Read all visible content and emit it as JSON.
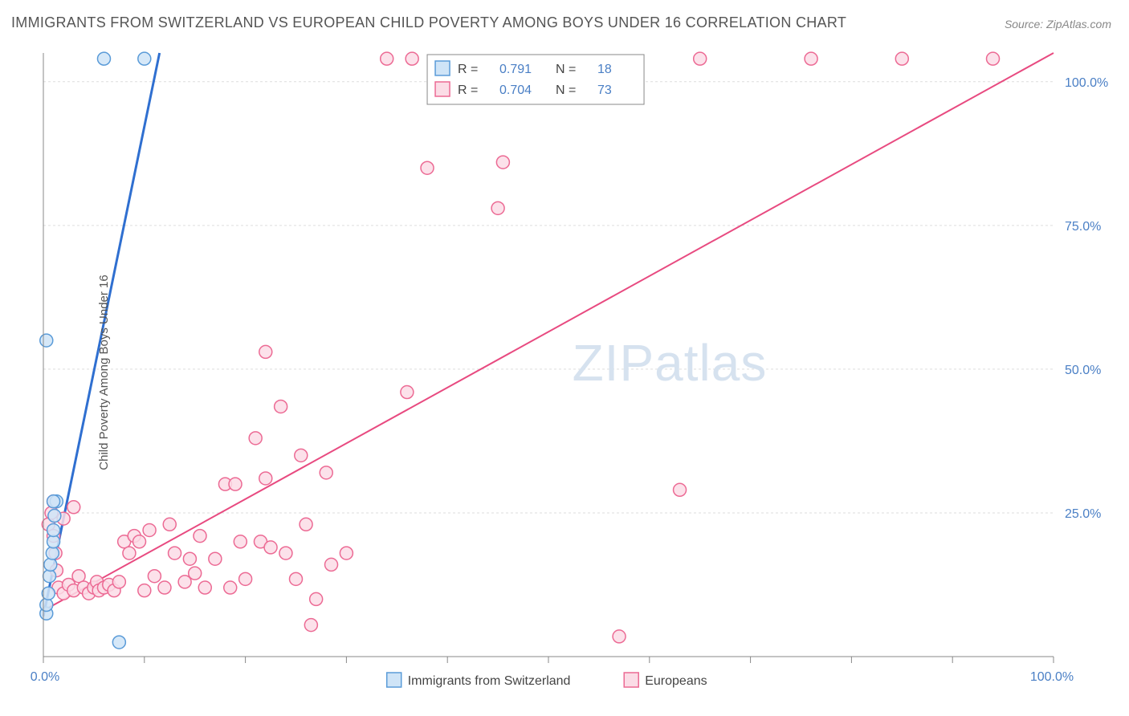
{
  "title": "IMMIGRANTS FROM SWITZERLAND VS EUROPEAN CHILD POVERTY AMONG BOYS UNDER 16 CORRELATION CHART",
  "source": "Source: ZipAtlas.com",
  "ylabel": "Child Poverty Among Boys Under 16",
  "watermark": "ZIPatlas",
  "chart": {
    "type": "scatter",
    "xlim": [
      0,
      100
    ],
    "ylim": [
      0,
      105
    ],
    "yticks": [
      25,
      50,
      75,
      100
    ],
    "ytick_labels": [
      "25.0%",
      "50.0%",
      "75.0%",
      "100.0%"
    ],
    "xticks_minor": [
      0,
      10,
      20,
      30,
      40,
      50,
      60,
      70,
      80,
      90,
      100
    ],
    "x_end_labels": [
      "0.0%",
      "100.0%"
    ],
    "background_color": "#ffffff",
    "grid_color": "#dddddd",
    "axis_color": "#888888",
    "marker_radius": 8,
    "marker_stroke_width": 1.5,
    "series": [
      {
        "name": "Immigrants from Switzerland",
        "fill": "#cfe4f7",
        "stroke": "#5a9bd8",
        "line_color": "#2f6fd0",
        "line_width": 3,
        "R": "0.791",
        "N": "18",
        "trend": {
          "x1": 0,
          "y1": 7,
          "x2": 11.5,
          "y2": 105
        },
        "points": [
          [
            0.3,
            7.5
          ],
          [
            0.3,
            9
          ],
          [
            0.5,
            11
          ],
          [
            0.6,
            14
          ],
          [
            0.7,
            16
          ],
          [
            0.9,
            18
          ],
          [
            1.0,
            20
          ],
          [
            1.0,
            22
          ],
          [
            1.1,
            24.5
          ],
          [
            1.3,
            27
          ],
          [
            1.0,
            27
          ],
          [
            0.3,
            55
          ],
          [
            7.5,
            2.5
          ],
          [
            6.0,
            104
          ],
          [
            10.0,
            104
          ]
        ]
      },
      {
        "name": "Europeans",
        "fill": "#fbdce6",
        "stroke": "#ec6a94",
        "line_color": "#e84a80",
        "line_width": 2,
        "R": "0.704",
        "N": "73",
        "trend": {
          "x1": 0,
          "y1": 8,
          "x2": 100,
          "y2": 105
        },
        "points": [
          [
            0.5,
            23
          ],
          [
            0.8,
            25
          ],
          [
            1.0,
            21
          ],
          [
            1.0,
            27
          ],
          [
            1.2,
            18
          ],
          [
            1.3,
            15
          ],
          [
            1.5,
            12
          ],
          [
            2.0,
            11
          ],
          [
            2.0,
            24
          ],
          [
            2.5,
            12.5
          ],
          [
            3.0,
            11.5
          ],
          [
            3.0,
            26
          ],
          [
            3.5,
            14
          ],
          [
            4.0,
            12
          ],
          [
            4.5,
            11
          ],
          [
            5.0,
            12
          ],
          [
            5.3,
            13
          ],
          [
            5.5,
            11.5
          ],
          [
            6.0,
            12
          ],
          [
            6.5,
            12.5
          ],
          [
            7.0,
            11.5
          ],
          [
            7.5,
            13
          ],
          [
            8.0,
            20
          ],
          [
            8.5,
            18
          ],
          [
            9.0,
            21
          ],
          [
            9.5,
            20
          ],
          [
            10.0,
            11.5
          ],
          [
            10.5,
            22
          ],
          [
            11.0,
            14
          ],
          [
            12.0,
            12
          ],
          [
            12.5,
            23
          ],
          [
            13.0,
            18
          ],
          [
            14.0,
            13
          ],
          [
            14.5,
            17
          ],
          [
            15.0,
            14.5
          ],
          [
            15.5,
            21
          ],
          [
            16.0,
            12
          ],
          [
            17.0,
            17
          ],
          [
            18.0,
            30
          ],
          [
            18.5,
            12
          ],
          [
            19.0,
            30
          ],
          [
            19.5,
            20
          ],
          [
            20.0,
            13.5
          ],
          [
            21.0,
            38
          ],
          [
            21.5,
            20
          ],
          [
            22.0,
            31
          ],
          [
            22.5,
            19
          ],
          [
            23.5,
            43.5
          ],
          [
            24.0,
            18
          ],
          [
            25.0,
            13.5
          ],
          [
            25.5,
            35
          ],
          [
            26.0,
            23
          ],
          [
            26.5,
            5.5
          ],
          [
            27.0,
            10
          ],
          [
            22.0,
            53
          ],
          [
            28.0,
            32
          ],
          [
            28.5,
            16
          ],
          [
            30.0,
            18
          ],
          [
            34.0,
            104
          ],
          [
            36.0,
            46
          ],
          [
            36.5,
            104
          ],
          [
            38.0,
            85
          ],
          [
            45.0,
            78
          ],
          [
            45.5,
            86
          ],
          [
            57.0,
            3.5
          ],
          [
            65.0,
            104
          ],
          [
            63.0,
            29
          ],
          [
            76.0,
            104
          ],
          [
            85.0,
            104
          ],
          [
            94.0,
            104
          ]
        ]
      }
    ],
    "legend_top": {
      "labels_R": "R =",
      "labels_N": "N ="
    },
    "legend_bottom": [
      {
        "label": "Immigrants from Switzerland",
        "fill": "#cfe4f7",
        "stroke": "#5a9bd8"
      },
      {
        "label": "Europeans",
        "fill": "#fbdce6",
        "stroke": "#ec6a94"
      }
    ]
  }
}
